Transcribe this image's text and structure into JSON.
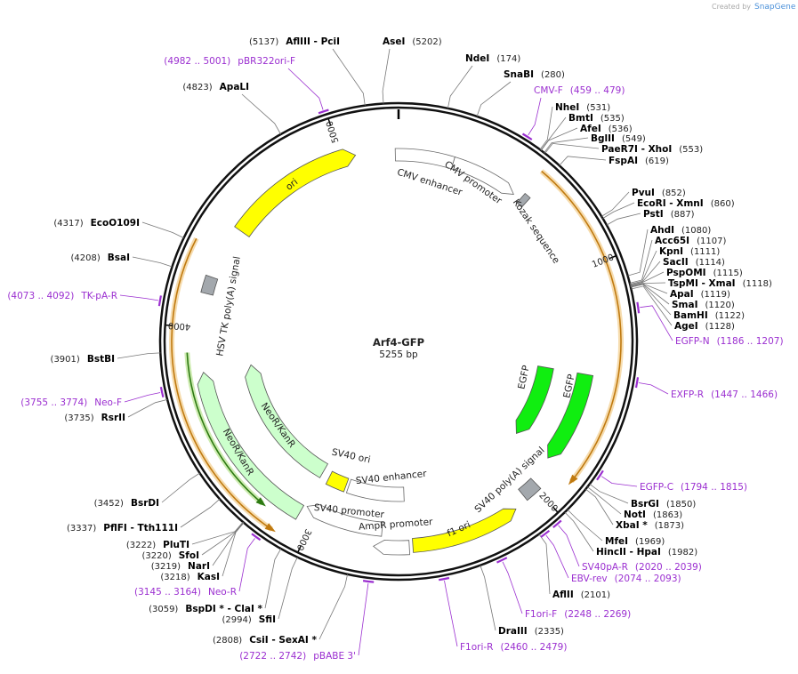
{
  "watermark": {
    "prefix": "Created by",
    "brand": "SnapGene"
  },
  "plasmid": {
    "name": "Arf4-GFP",
    "length": 5255,
    "size_label": "5255 bp"
  },
  "ticks": [
    1000,
    2000,
    3000,
    4000,
    5000
  ],
  "enzymes": [
    {
      "name": "AflIII  - PciI",
      "position": 5137,
      "label": "(5137)"
    },
    {
      "name": "AseI",
      "position": 5202,
      "label": "(5202)"
    },
    {
      "name": "NdeI",
      "position": 174,
      "label": "(174)"
    },
    {
      "name": "SnaBI",
      "position": 280,
      "label": "(280)"
    },
    {
      "name": "NheI",
      "position": 531,
      "label": "(531)"
    },
    {
      "name": "BmtI",
      "position": 535,
      "label": "(535)"
    },
    {
      "name": "AfeI",
      "position": 536,
      "label": "(536)"
    },
    {
      "name": "BglII",
      "position": 549,
      "label": "(549)"
    },
    {
      "name": "PaeR7I  - XhoI",
      "position": 553,
      "label": "(553)"
    },
    {
      "name": "FspAI",
      "position": 619,
      "label": "(619)"
    },
    {
      "name": "PvuI",
      "position": 852,
      "label": "(852)"
    },
    {
      "name": "EcoRI  - XmnI",
      "position": 860,
      "label": "(860)"
    },
    {
      "name": "PstI",
      "position": 887,
      "label": "(887)"
    },
    {
      "name": "AhdI",
      "position": 1080,
      "label": "(1080)"
    },
    {
      "name": "Acc65I",
      "position": 1107,
      "label": "(1107)"
    },
    {
      "name": "KpnI",
      "position": 1111,
      "label": "(1111)"
    },
    {
      "name": "SacII",
      "position": 1114,
      "label": "(1114)"
    },
    {
      "name": "PspOMI",
      "position": 1115,
      "label": "(1115)"
    },
    {
      "name": "TspMI  - XmaI",
      "position": 1118,
      "label": "(1118)"
    },
    {
      "name": "ApaI",
      "position": 1119,
      "label": "(1119)"
    },
    {
      "name": "SmaI",
      "position": 1120,
      "label": "(1120)"
    },
    {
      "name": "BamHI",
      "position": 1122,
      "label": "(1122)"
    },
    {
      "name": "AgeI",
      "position": 1128,
      "label": "(1128)"
    },
    {
      "name": "BsrGI",
      "position": 1850,
      "label": "(1850)"
    },
    {
      "name": "NotI",
      "position": 1863,
      "label": "(1863)"
    },
    {
      "name": "XbaI *",
      "position": 1873,
      "label": "(1873)"
    },
    {
      "name": "MfeI",
      "position": 1969,
      "label": "(1969)"
    },
    {
      "name": "HincII  - HpaI",
      "position": 1982,
      "label": "(1982)"
    },
    {
      "name": "AflII",
      "position": 2101,
      "label": "(2101)"
    },
    {
      "name": "DraIII",
      "position": 2335,
      "label": "(2335)"
    },
    {
      "name": "CsiI  - SexAI *",
      "position": 2808,
      "label": "(2808)"
    },
    {
      "name": "SfiI",
      "position": 2994,
      "label": "(2994)"
    },
    {
      "name": "BspDI *  - ClaI *",
      "position": 3059,
      "label": "(3059)"
    },
    {
      "name": "KasI",
      "position": 3218,
      "label": "(3218)"
    },
    {
      "name": "NarI",
      "position": 3219,
      "label": "(3219)"
    },
    {
      "name": "SfoI",
      "position": 3220,
      "label": "(3220)"
    },
    {
      "name": "PluTI",
      "position": 3222,
      "label": "(3222)"
    },
    {
      "name": "PflFI  - Tth111I",
      "position": 3337,
      "label": "(3337)"
    },
    {
      "name": "BsrDI",
      "position": 3452,
      "label": "(3452)"
    },
    {
      "name": "RsrII",
      "position": 3735,
      "label": "(3735)"
    },
    {
      "name": "BstBI",
      "position": 3901,
      "label": "(3901)"
    },
    {
      "name": "BsaI",
      "position": 4208,
      "label": "(4208)"
    },
    {
      "name": "EcoO109I",
      "position": 4317,
      "label": "(4317)"
    },
    {
      "name": "ApaLI",
      "position": 4823,
      "label": "(4823)"
    }
  ],
  "primers": [
    {
      "name": "pBR322ori-F",
      "range": [
        4982,
        5001
      ],
      "label": "(4982 .. 5001)"
    },
    {
      "name": "CMV-F",
      "range": [
        459,
        479
      ],
      "label": "(459 .. 479)"
    },
    {
      "name": "TK-pA-R",
      "range": [
        4073,
        4092
      ],
      "label": "(4073 .. 4092)"
    },
    {
      "name": "EGFP-N",
      "range": [
        1186,
        1207
      ],
      "label": "(1186 .. 1207)"
    },
    {
      "name": "EXFP-R",
      "range": [
        1447,
        1466
      ],
      "label": "(1447 .. 1466)"
    },
    {
      "name": "Neo-F",
      "range": [
        3755,
        3774
      ],
      "label": "(3755 .. 3774)"
    },
    {
      "name": "EGFP-C",
      "range": [
        1794,
        1815
      ],
      "label": "(1794 .. 1815)"
    },
    {
      "name": "SV40pA-R",
      "range": [
        2020,
        2039
      ],
      "label": "(2020 .. 2039)"
    },
    {
      "name": "EBV-rev",
      "range": [
        2074,
        2093
      ],
      "label": "(2074 .. 2093)"
    },
    {
      "name": "Neo-R",
      "range": [
        3145,
        3164
      ],
      "label": "(3145 .. 3164)"
    },
    {
      "name": "F1ori-F",
      "range": [
        2248,
        2269
      ],
      "label": "(2248 .. 2269)"
    },
    {
      "name": "F1ori-R",
      "range": [
        2460,
        2479
      ],
      "label": "(2460 .. 2479)"
    },
    {
      "name": "pBABE 3'",
      "range": [
        2722,
        2742
      ],
      "label": "(2722 .. 2742)"
    }
  ],
  "features": [
    {
      "label": "CMV enhancer"
    },
    {
      "label": "CMV promoter"
    },
    {
      "label": "Kozak sequence"
    },
    {
      "label": "EGFP"
    },
    {
      "label": "EGFP"
    },
    {
      "label": "SV40 poly(A) signal"
    },
    {
      "label": "f1 ori"
    },
    {
      "label": "AmpR promoter"
    },
    {
      "label": "SV40 promoter"
    },
    {
      "label": "SV40 ori"
    },
    {
      "label": "SV40 enhancer"
    },
    {
      "label": "NeoR/KanR"
    },
    {
      "label": "NeoR/KanR"
    },
    {
      "label": "HSV TK poly(A) signal"
    },
    {
      "label": "ori"
    }
  ]
}
